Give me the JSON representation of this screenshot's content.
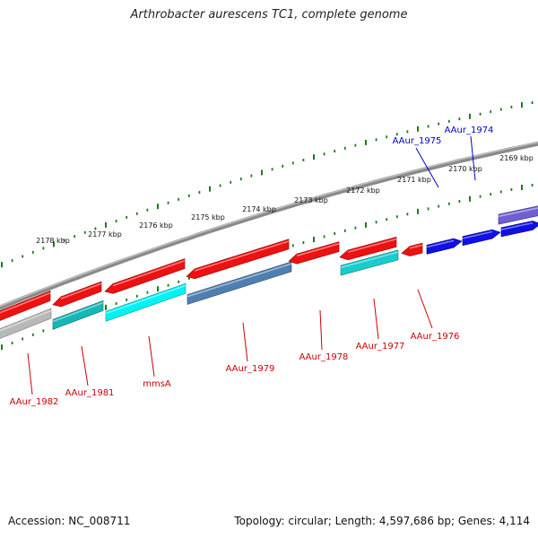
{
  "title": "Arthrobacter aurescens TC1, complete genome",
  "footer": {
    "accession": "Accession: NC_008711",
    "summary": "Topology: circular; Length: 4,597,686 bp; Genes: 4,114"
  },
  "colors": {
    "forward_gene_label": "#0000cc",
    "reverse_gene_label": "#cc0000",
    "backbone": "#8a8a8a",
    "scale_ticks": "#1a7a1a"
  },
  "scale": {
    "labels": [
      "2178 kbp",
      "2177 kbp",
      "2176 kbp",
      "2175 kbp",
      "2174 kbp",
      "2173 kbp",
      "2172 kbp",
      "2171 kbp",
      "2170 kbp",
      "2169 kbp"
    ]
  },
  "genes": {
    "forward": [
      "AAur_1975",
      "AAur_1974"
    ],
    "reverse": [
      "AAur_1982",
      "AAur_1981",
      "mmsA",
      "AAur_1979",
      "AAur_1978",
      "AAur_1977",
      "AAur_1976"
    ]
  }
}
